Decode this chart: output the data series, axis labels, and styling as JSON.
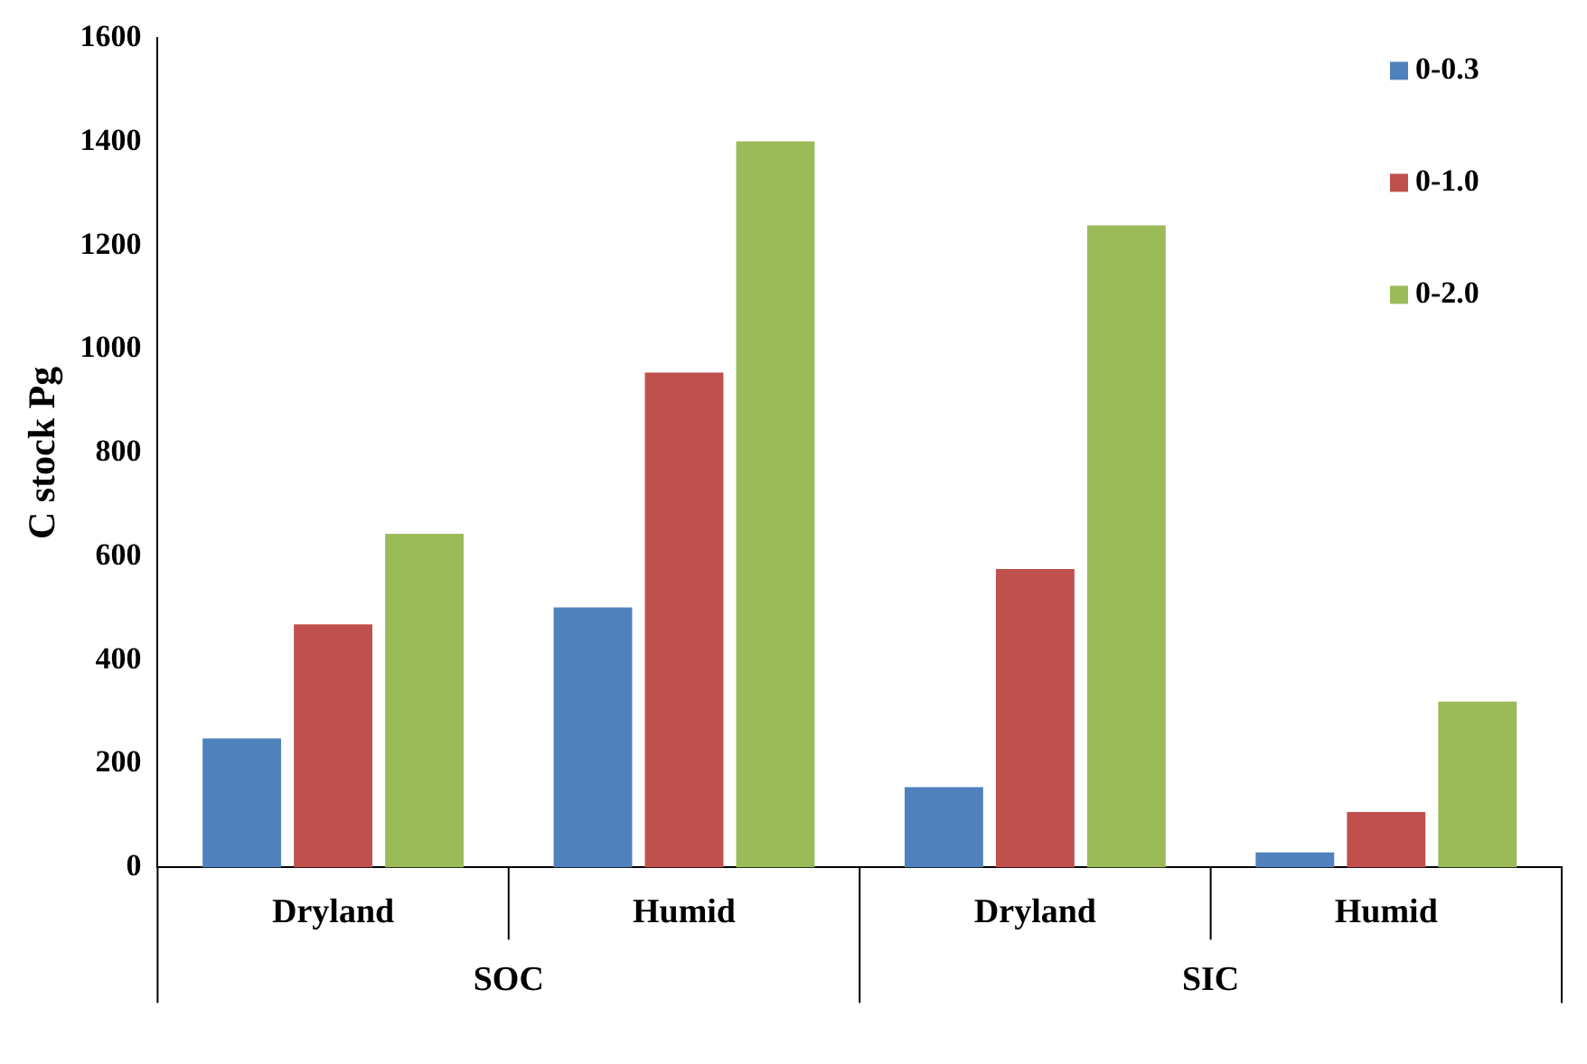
{
  "chart_data": {
    "type": "bar",
    "ylabel": "C stock Pg",
    "categories": [
      "Dryland",
      "Humid",
      "Dryland",
      "Humid"
    ],
    "series": [
      {
        "name": "0-0.3",
        "color": "#4f81bd",
        "values": [
          249,
          502,
          155,
          29
        ]
      },
      {
        "name": "0-1.0",
        "color": "#c0504d",
        "values": [
          469,
          955,
          576,
          107
        ]
      },
      {
        "name": "0-2.0",
        "color": "#9bbb59",
        "values": [
          644,
          1401,
          1239,
          320
        ]
      }
    ],
    "annotations": [
      "SOC",
      "SIC"
    ],
    "ylim": [
      0,
      1600
    ],
    "yticks": [
      0,
      200,
      400,
      600,
      800,
      1000,
      1200,
      1400,
      1600
    ],
    "grid": false,
    "legend": "top right"
  }
}
